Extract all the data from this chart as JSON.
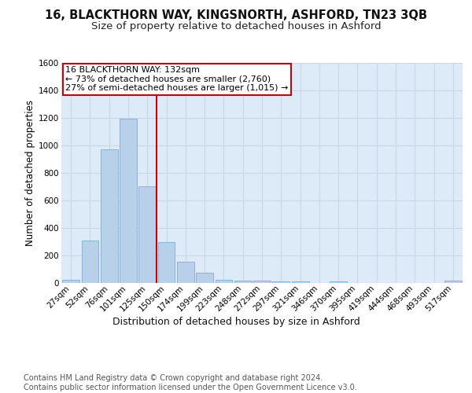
{
  "title1": "16, BLACKTHORN WAY, KINGSNORTH, ASHFORD, TN23 3QB",
  "title2": "Size of property relative to detached houses in Ashford",
  "xlabel": "Distribution of detached houses by size in Ashford",
  "ylabel": "Number of detached properties",
  "categories": [
    "27sqm",
    "52sqm",
    "76sqm",
    "101sqm",
    "125sqm",
    "150sqm",
    "174sqm",
    "199sqm",
    "223sqm",
    "248sqm",
    "272sqm",
    "297sqm",
    "321sqm",
    "346sqm",
    "370sqm",
    "395sqm",
    "419sqm",
    "444sqm",
    "468sqm",
    "493sqm",
    "517sqm"
  ],
  "values": [
    25,
    310,
    970,
    1195,
    700,
    300,
    155,
    75,
    25,
    20,
    15,
    10,
    10,
    0,
    10,
    0,
    0,
    0,
    0,
    0,
    15
  ],
  "bar_color": "#b8d0ea",
  "bar_edge_color": "#7aafd4",
  "grid_color": "#c8d8e8",
  "background_color": "#ddeaf8",
  "vline_color": "#cc0000",
  "annotation_line1": "16 BLACKTHORN WAY: 132sqm",
  "annotation_line2": "← 73% of detached houses are smaller (2,760)",
  "annotation_line3": "27% of semi-detached houses are larger (1,015) →",
  "annotation_box_color": "#ffffff",
  "annotation_box_edge": "#cc0000",
  "ylim": [
    0,
    1600
  ],
  "yticks": [
    0,
    200,
    400,
    600,
    800,
    1000,
    1200,
    1400,
    1600
  ],
  "footnote": "Contains HM Land Registry data © Crown copyright and database right 2024.\nContains public sector information licensed under the Open Government Licence v3.0.",
  "title1_fontsize": 10.5,
  "title2_fontsize": 9.5,
  "xlabel_fontsize": 9,
  "ylabel_fontsize": 8.5,
  "tick_fontsize": 7.5,
  "annotation_fontsize": 8,
  "footnote_fontsize": 7
}
